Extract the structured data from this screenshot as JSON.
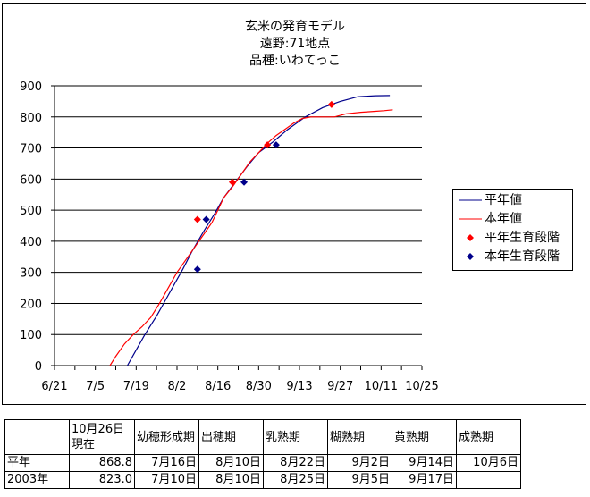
{
  "chart_data": {
    "type": "line",
    "title_lines": [
      "玄米の発育モデル",
      "遠野:71地点",
      "品種:いわてっこ"
    ],
    "x_tick_labels": [
      "6/21",
      "7/5",
      "7/19",
      "8/2",
      "8/16",
      "8/30",
      "9/13",
      "9/27",
      "10/11",
      "10/25"
    ],
    "x_range_days": [
      0,
      126
    ],
    "ylim": [
      0,
      900
    ],
    "y_ticks": [
      0,
      100,
      200,
      300,
      400,
      500,
      600,
      700,
      800,
      900
    ],
    "grid": "horizontal",
    "legend_position": "right",
    "series": [
      {
        "name": "平年値",
        "kind": "line",
        "color": "#00008b",
        "points": [
          [
            25,
            0
          ],
          [
            28,
            50
          ],
          [
            31,
            100
          ],
          [
            35,
            160
          ],
          [
            38,
            210
          ],
          [
            41,
            260
          ],
          [
            44,
            310
          ],
          [
            47,
            365
          ],
          [
            51,
            430
          ],
          [
            55,
            490
          ],
          [
            58,
            540
          ],
          [
            62,
            590
          ],
          [
            66,
            640
          ],
          [
            70,
            685
          ],
          [
            75,
            720
          ],
          [
            80,
            760
          ],
          [
            86,
            800
          ],
          [
            92,
            830
          ],
          [
            98,
            850
          ],
          [
            104,
            865
          ],
          [
            110,
            868
          ],
          [
            115,
            868.8
          ]
        ]
      },
      {
        "name": "本年値",
        "kind": "line",
        "color": "#ff0000",
        "points": [
          [
            19,
            0
          ],
          [
            21,
            30
          ],
          [
            24,
            70
          ],
          [
            27,
            100
          ],
          [
            30,
            125
          ],
          [
            33,
            155
          ],
          [
            36,
            200
          ],
          [
            39,
            250
          ],
          [
            42,
            300
          ],
          [
            45,
            340
          ],
          [
            48,
            380
          ],
          [
            51,
            420
          ],
          [
            54,
            460
          ],
          [
            56,
            500
          ],
          [
            58,
            540
          ],
          [
            61,
            575
          ],
          [
            64,
            615
          ],
          [
            67,
            655
          ],
          [
            70,
            685
          ],
          [
            73,
            715
          ],
          [
            76,
            740
          ],
          [
            79,
            760
          ],
          [
            82,
            780
          ],
          [
            85,
            795
          ],
          [
            88,
            800
          ],
          [
            92,
            800
          ],
          [
            96,
            800
          ],
          [
            100,
            810
          ],
          [
            105,
            815
          ],
          [
            110,
            818
          ],
          [
            113,
            820
          ],
          [
            116,
            823
          ]
        ]
      },
      {
        "name": "平年生育段階",
        "kind": "marker",
        "color": "#ff0000",
        "points": [
          [
            49,
            470
          ],
          [
            61,
            590
          ],
          [
            73,
            710
          ],
          [
            95,
            840
          ]
        ]
      },
      {
        "name": "本年生育段階",
        "kind": "marker",
        "color": "#00008b",
        "points": [
          [
            49,
            310
          ],
          [
            52,
            470
          ],
          [
            65,
            590
          ],
          [
            76,
            710
          ]
        ]
      }
    ]
  },
  "legend": [
    {
      "label": "平年値",
      "kind": "line",
      "color": "#00008b"
    },
    {
      "label": "本年値",
      "kind": "line",
      "color": "#ff0000"
    },
    {
      "label": "平年生育段階",
      "kind": "marker",
      "color": "#ff0000"
    },
    {
      "label": "本年生育段階",
      "kind": "marker",
      "color": "#00008b"
    }
  ],
  "table": {
    "headers": [
      "",
      "10月26日現在",
      "幼穂形成期",
      "出穂期",
      "乳熟期",
      "糊熟期",
      "黄熟期",
      "成熟期"
    ],
    "rows": [
      [
        "平年",
        "868.8",
        "7月16日",
        "8月10日",
        "8月22日",
        "9月2日",
        "9月14日",
        "10月6日"
      ],
      [
        "2003年",
        "823.0",
        "7月10日",
        "8月10日",
        "8月25日",
        "9月5日",
        "9月17日",
        ""
      ]
    ]
  }
}
